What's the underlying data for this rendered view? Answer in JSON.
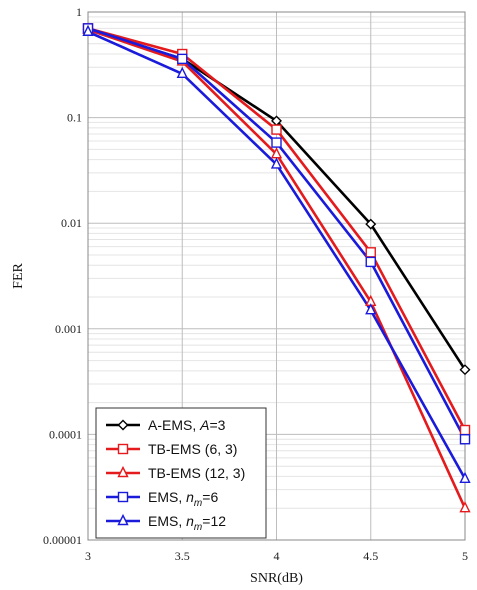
{
  "chart_data": {
    "type": "line",
    "xlabel": "SNR(dB)",
    "ylabel": "FER",
    "x": [
      3,
      3.5,
      4,
      4.5,
      5
    ],
    "xlim": [
      3,
      5
    ],
    "ylim": [
      1e-05,
      1
    ],
    "yscale": "log",
    "grid": true,
    "legend_position": "bottom-left",
    "x_tick_labels": [
      "3",
      "3.5",
      "4",
      "4.5",
      "5"
    ],
    "y_tick_labels": [
      "0.00001",
      "0.0001",
      "0.001",
      "0.01",
      "0.1",
      "1"
    ],
    "series": [
      {
        "name_parts": [
          [
            "A-EMS, ",
            "normal"
          ],
          [
            "A",
            "italic"
          ],
          [
            "=3",
            "normal"
          ]
        ],
        "color": "#000000",
        "marker": "diamond",
        "values": [
          0.68,
          0.36,
          0.093,
          0.0098,
          0.00041
        ]
      },
      {
        "name_parts": [
          [
            "TB-EMS (6, 3)",
            "normal"
          ]
        ],
        "color": "#e41a1c",
        "marker": "square",
        "values": [
          0.7,
          0.4,
          0.077,
          0.0053,
          0.00011
        ]
      },
      {
        "name_parts": [
          [
            "TB-EMS (12, 3)",
            "normal"
          ]
        ],
        "color": "#e41a1c",
        "marker": "triangle",
        "values": [
          0.68,
          0.34,
          0.045,
          0.0018,
          2e-05
        ]
      },
      {
        "name_parts": [
          [
            "EMS, ",
            "normal"
          ],
          [
            "n",
            "italic"
          ],
          [
            "m",
            "sub"
          ],
          [
            "=6",
            "normal"
          ]
        ],
        "color": "#1a1adb",
        "marker": "square",
        "values": [
          0.7,
          0.36,
          0.058,
          0.0043,
          9e-05
        ]
      },
      {
        "name_parts": [
          [
            "EMS, ",
            "normal"
          ],
          [
            "n",
            "italic"
          ],
          [
            "m",
            "sub"
          ],
          [
            "=12",
            "normal"
          ]
        ],
        "color": "#1a1adb",
        "marker": "triangle",
        "values": [
          0.65,
          0.26,
          0.036,
          0.0015,
          3.8e-05
        ]
      }
    ]
  }
}
